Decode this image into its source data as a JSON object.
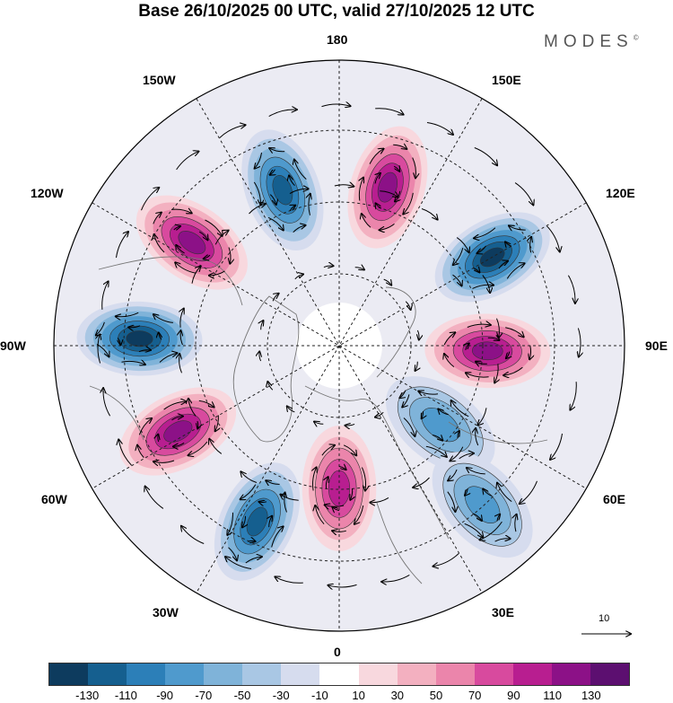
{
  "title": "Base 26/10/2025 00 UTC, valid 27/10/2025 12 UTC",
  "brand": "MODES",
  "brand_mark": "©",
  "longitude_labels": {
    "lon_180": "180",
    "lon_150e": "150E",
    "lon_120e": "120E",
    "lon_90e": "90E",
    "lon_60e": "60E",
    "lon_30e": "30E",
    "lon_0": "0",
    "lon_30w": "30W",
    "lon_60w": "60W",
    "lon_90w": "90W",
    "lon_120w": "120W",
    "lon_150w": "150W"
  },
  "vector_reference": "10",
  "colorbar": {
    "colors": [
      "#0d3b5e",
      "#155f8f",
      "#2c7fb8",
      "#4f9acd",
      "#7fb3d9",
      "#a9c7e4",
      "#d6dcee",
      "#ffffff",
      "#f8d8de",
      "#f3b0c0",
      "#eb85ab",
      "#d84a9e",
      "#b81e90",
      "#8c1187",
      "#5c0f70"
    ],
    "tick_labels": [
      "-130",
      "-110",
      "-90",
      "-70",
      "-50",
      "-30",
      "-10",
      "10",
      "30",
      "50",
      "70",
      "90",
      "110",
      "130"
    ]
  },
  "anomalies": [
    {
      "name": "anomaly-150w-negative",
      "lon": -160,
      "r": 0.58,
      "value": -110
    },
    {
      "name": "anomaly-180-positive",
      "lon": 163,
      "r": 0.58,
      "value": 120
    },
    {
      "name": "anomaly-120e-negative",
      "lon": 120,
      "r": 0.62,
      "value": -130
    },
    {
      "name": "anomaly-90e-positive",
      "lon": 88,
      "r": 0.52,
      "value": 120
    },
    {
      "name": "anomaly-55e-negative",
      "lon": 52,
      "r": 0.45,
      "value": -70
    },
    {
      "name": "anomaly-35e-negative",
      "lon": 42,
      "r": 0.75,
      "value": -70
    },
    {
      "name": "anomaly-0-positive",
      "lon": 0,
      "r": 0.5,
      "value": 100
    },
    {
      "name": "anomaly-30w-negative",
      "lon": -25,
      "r": 0.68,
      "value": -110
    },
    {
      "name": "anomaly-60w-positive",
      "lon": -62,
      "r": 0.64,
      "value": 110
    },
    {
      "name": "anomaly-90w-negative",
      "lon": -92,
      "r": 0.7,
      "value": -130
    },
    {
      "name": "anomaly-125w-positive",
      "lon": -125,
      "r": 0.63,
      "value": 120
    }
  ]
}
